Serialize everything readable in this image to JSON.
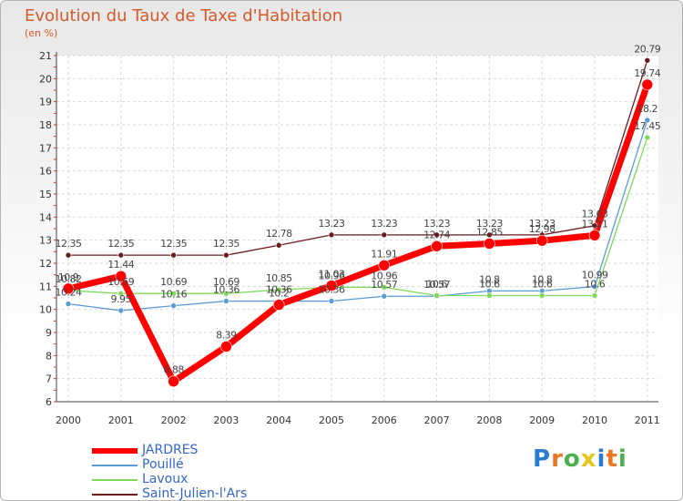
{
  "chart_data": {
    "type": "line",
    "title": "Evolution du Taux de Taxe d'Habitation",
    "ylabel": "(en %)",
    "xlabel": "",
    "ylim": [
      6,
      21
    ],
    "yticks": [
      "6",
      "7",
      "8",
      "9",
      "10",
      "11",
      "12",
      "13",
      "14",
      "15",
      "16",
      "17",
      "18",
      "19",
      "20",
      "21"
    ],
    "categories": [
      "2000",
      "2001",
      "2002",
      "2003",
      "2004",
      "2005",
      "2006",
      "2007",
      "2008",
      "2009",
      "2010",
      "2011"
    ],
    "series": [
      {
        "name": "Saint-Julien-l'Ars",
        "color": "#6b1a1e",
        "values": [
          12.35,
          12.35,
          12.35,
          12.35,
          12.78,
          13.23,
          13.23,
          13.23,
          13.23,
          13.23,
          13.63,
          20.79
        ],
        "labels": [
          "12.35",
          "12.35",
          "12.35",
          "12.35",
          "12.78",
          "13.23",
          "13.23",
          "13.23",
          "13.23",
          "13.23",
          "13.63",
          "20.79"
        ]
      },
      {
        "name": "Pouillé",
        "color": "#5b9bd5",
        "values": [
          10.24,
          9.95,
          10.16,
          10.36,
          10.36,
          10.36,
          10.57,
          10.57,
          10.8,
          10.8,
          10.99,
          18.2
        ],
        "labels": [
          "10.24",
          "9.95",
          "10.16",
          "10.36",
          "10.36",
          "10.36",
          "10.57",
          "10.57",
          "10.8",
          "10.8",
          "10.99",
          "18.2"
        ]
      },
      {
        "name": "Lavoux",
        "color": "#7ed957",
        "values": [
          10.82,
          10.69,
          10.69,
          10.69,
          10.85,
          10.96,
          10.96,
          10.6,
          10.6,
          10.6,
          10.6,
          17.45
        ],
        "labels": [
          "10.82",
          "10.69",
          "10.69",
          "10.69",
          "10.85",
          "10.96",
          "10.96",
          "10.6",
          "10.6",
          "10.6",
          "10.6",
          "17.45"
        ]
      },
      {
        "name": "JARDRES",
        "color": "#ff0000",
        "values": [
          10.9,
          11.44,
          6.88,
          8.39,
          10.2,
          11.03,
          11.91,
          12.74,
          12.85,
          12.98,
          13.21,
          19.74
        ],
        "labels": [
          "10.9",
          "11.44",
          "6.88",
          "8.39",
          "10.2",
          "11.03",
          "11.91",
          "12.74",
          "12.85",
          "12.98",
          "13.21",
          "19.74"
        ]
      }
    ],
    "legend": [
      {
        "name": "JARDRES",
        "color": "#ff0000"
      },
      {
        "name": "Pouillé",
        "color": "#5b9bd5"
      },
      {
        "name": "Lavoux",
        "color": "#7ed957"
      },
      {
        "name": "Saint-Julien-l'Ars",
        "color": "#6b1a1e"
      }
    ],
    "legend_position": "bottom-left"
  },
  "brand": {
    "letters": [
      "P",
      "r",
      "o",
      "x",
      "i",
      "t",
      "i"
    ],
    "colors": [
      "#2b7bd1",
      "#e87722",
      "#4caf50",
      "#e6c619",
      "#2b7bd1",
      "#e87722",
      "#4caf50"
    ]
  }
}
